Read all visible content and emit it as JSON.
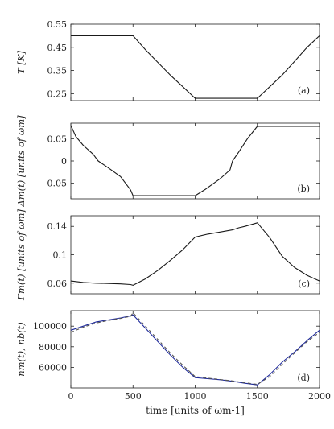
{
  "chart_data": [
    {
      "type": "line",
      "panel_label": "(a)",
      "ylabel": "T [K]",
      "xlim": [
        0,
        2000
      ],
      "ylim": [
        0.22,
        0.55
      ],
      "yticks": [
        0.25,
        0.35,
        0.45,
        0.55
      ],
      "ytick_labels": [
        "0.25",
        "0.35",
        "0.45",
        "0.55"
      ],
      "xticks": [
        0,
        500,
        1000,
        1500,
        2000
      ],
      "grid": false,
      "series": [
        {
          "color": "#1a1a1a",
          "dash": "solid",
          "x": [
            0,
            500,
            600,
            700,
            800,
            900,
            1000,
            1500,
            1600,
            1700,
            1800,
            1900,
            2000
          ],
          "y": [
            0.5,
            0.5,
            0.44,
            0.385,
            0.33,
            0.28,
            0.23,
            0.23,
            0.28,
            0.33,
            0.39,
            0.45,
            0.5
          ]
        }
      ]
    },
    {
      "type": "line",
      "panel_label": "(b)",
      "ylabel": "Δm(t) [units of ωm]",
      "xlim": [
        0,
        2000
      ],
      "ylim": [
        -0.085,
        0.085
      ],
      "yticks": [
        -0.05,
        0,
        0.05
      ],
      "ytick_labels": [
        "-0.05",
        "0",
        "0.05"
      ],
      "xticks": [
        0,
        500,
        1000,
        1500,
        2000
      ],
      "grid": false,
      "series": [
        {
          "color": "#1a1a1a",
          "dash": "solid",
          "x": [
            0,
            40,
            100,
            180,
            220,
            300,
            400,
            480,
            500,
            1000,
            1080,
            1200,
            1280,
            1300,
            1350,
            1420,
            1500,
            2000
          ],
          "y": [
            0.08,
            0.055,
            0.035,
            0.015,
            0.0,
            -0.015,
            -0.035,
            -0.065,
            -0.078,
            -0.078,
            -0.064,
            -0.04,
            -0.02,
            0.0,
            0.02,
            0.05,
            0.078,
            0.078
          ]
        }
      ]
    },
    {
      "type": "line",
      "panel_label": "(c)",
      "ylabel": "Γm(t) [units of ωm]",
      "xlim": [
        0,
        2000
      ],
      "ylim": [
        0.045,
        0.155
      ],
      "yticks": [
        0.06,
        0.1,
        0.14
      ],
      "ytick_labels": [
        "0.06",
        "0.1",
        "0.14"
      ],
      "xticks": [
        0,
        500,
        1000,
        1500,
        2000
      ],
      "grid": false,
      "series": [
        {
          "color": "#1a1a1a",
          "dash": "solid",
          "x": [
            0,
            100,
            200,
            300,
            400,
            480,
            500,
            600,
            700,
            800,
            900,
            1000,
            1100,
            1200,
            1300,
            1350,
            1400,
            1500,
            1600,
            1700,
            1800,
            1900,
            2000
          ],
          "y": [
            0.063,
            0.061,
            0.06,
            0.0595,
            0.059,
            0.058,
            0.057,
            0.066,
            0.078,
            0.092,
            0.107,
            0.125,
            0.129,
            0.132,
            0.135,
            0.138,
            0.14,
            0.145,
            0.124,
            0.098,
            0.082,
            0.071,
            0.063
          ]
        }
      ]
    },
    {
      "type": "line",
      "panel_label": "(d)",
      "ylabel": "nm(t), nb(t)",
      "xlabel": "time [units of ωm-1]",
      "xlim": [
        0,
        2000
      ],
      "ylim": [
        40000,
        115000
      ],
      "yticks": [
        60000,
        80000,
        100000
      ],
      "ytick_labels": [
        "60000",
        "80000",
        "100000"
      ],
      "xticks": [
        0,
        500,
        1000,
        1500,
        2000
      ],
      "xtick_labels": [
        "0",
        "500",
        "1000",
        "1500",
        "2000"
      ],
      "grid": false,
      "series": [
        {
          "color": "#1f2a9b",
          "dash": "solid",
          "x": [
            0,
            100,
            200,
            300,
            400,
            480,
            500,
            600,
            700,
            800,
            900,
            1000,
            1100,
            1200,
            1300,
            1400,
            1500,
            1600,
            1700,
            1800,
            1900,
            2000
          ],
          "y": [
            96000,
            100000,
            104000,
            106000,
            108000,
            110000,
            111000,
            98000,
            85000,
            72000,
            60000,
            50000,
            49000,
            48000,
            46500,
            44500,
            43000,
            53000,
            65000,
            75000,
            86000,
            96000
          ]
        },
        {
          "color": "#555555",
          "dash": "dashed",
          "x": [
            0,
            100,
            200,
            300,
            400,
            480,
            500,
            600,
            700,
            800,
            900,
            1000,
            1100,
            1200,
            1300,
            1400,
            1500,
            1600,
            1700,
            1800,
            1900,
            2000
          ],
          "y": [
            94000,
            99000,
            103000,
            105500,
            107500,
            109500,
            113000,
            100000,
            87000,
            74000,
            62000,
            51000,
            49500,
            48200,
            46800,
            45000,
            43500,
            51000,
            63000,
            74000,
            85000,
            94000
          ]
        }
      ]
    }
  ]
}
